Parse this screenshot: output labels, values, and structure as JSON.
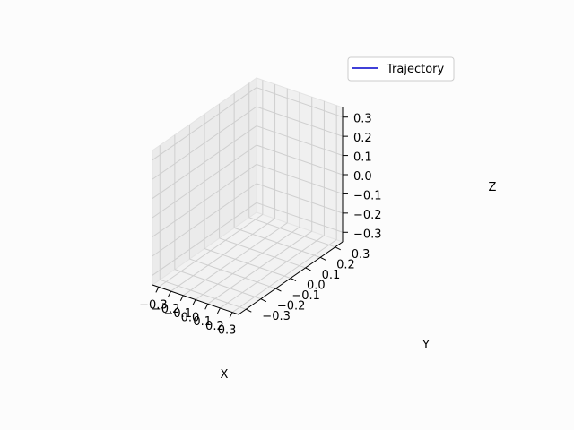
{
  "chart_data": {
    "type": "line",
    "projection": "3d",
    "title": "",
    "xlabel": "X",
    "ylabel": "Y",
    "zlabel": "Z",
    "xticks": [
      "−0.3",
      "−0.2",
      "−0.1",
      "0.0",
      "0.1",
      "0.2",
      "0.3"
    ],
    "yticks": [
      "−0.3",
      "−0.2",
      "−0.1",
      "0.0",
      "0.1",
      "0.2",
      "0.3"
    ],
    "zticks": [
      "−0.3",
      "−0.2",
      "−0.1",
      "0.0",
      "0.1",
      "0.2",
      "0.3"
    ],
    "xlim": [
      -0.35,
      0.35
    ],
    "ylim": [
      -0.35,
      0.35
    ],
    "zlim": [
      -0.35,
      0.35
    ],
    "grid": true,
    "legend_position": "top-right",
    "series": [
      {
        "name": "Trajectory",
        "color": "#0000cc",
        "x": [],
        "y": [],
        "z": []
      }
    ]
  }
}
